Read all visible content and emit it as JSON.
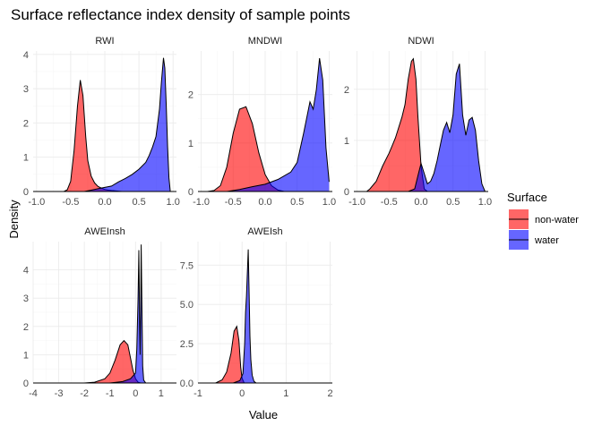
{
  "chart_data": {
    "type": "area",
    "title": "Surface reflectance index density of sample points",
    "xlabel": "Value",
    "ylabel": "Density",
    "legend": {
      "title": "Surface",
      "placement": "right",
      "entries": [
        {
          "name": "non-water",
          "color": "#ff0000"
        },
        {
          "name": "water",
          "color": "#0000ff"
        }
      ]
    },
    "fill_opacity": 0.6,
    "grid": true,
    "panels": [
      {
        "name": "RWI",
        "xlim": [
          -1.05,
          1.05
        ],
        "ylim": [
          0,
          4.1
        ],
        "xticks": [
          -1.0,
          -0.5,
          0.0,
          0.5,
          1.0
        ],
        "xtick_labels": [
          "-1.0",
          "-0.5",
          "0.0",
          "0.5",
          "1.0"
        ],
        "yticks": [
          0,
          1,
          2,
          3,
          4
        ],
        "ytick_labels": [
          "0",
          "1",
          "2",
          "3",
          "4"
        ],
        "series": [
          {
            "name": "non-water",
            "x": [
              -0.6,
              -0.55,
              -0.5,
              -0.45,
              -0.4,
              -0.36,
              -0.32,
              -0.28,
              -0.25,
              -0.2,
              -0.15,
              -0.1,
              -0.05,
              0.0,
              0.05,
              0.1,
              0.15,
              0.2,
              0.25,
              0.3
            ],
            "y": [
              0.0,
              0.05,
              0.3,
              1.2,
              2.5,
              3.25,
              2.8,
              1.6,
              0.9,
              0.45,
              0.25,
              0.15,
              0.1,
              0.06,
              0.04,
              0.03,
              0.02,
              0.01,
              0.0,
              0.0
            ]
          },
          {
            "name": "water",
            "x": [
              -0.3,
              -0.2,
              -0.1,
              0.0,
              0.1,
              0.2,
              0.3,
              0.4,
              0.5,
              0.6,
              0.65,
              0.7,
              0.75,
              0.8,
              0.83,
              0.86,
              0.88,
              0.9,
              0.92,
              0.94,
              0.96
            ],
            "y": [
              0.0,
              0.04,
              0.08,
              0.12,
              0.16,
              0.28,
              0.38,
              0.5,
              0.65,
              0.85,
              1.05,
              1.3,
              1.6,
              2.4,
              3.2,
              3.9,
              3.6,
              2.5,
              1.3,
              0.4,
              0.0
            ]
          }
        ]
      },
      {
        "name": "MNDWI",
        "xlim": [
          -1.05,
          1.05
        ],
        "ylim": [
          0,
          2.9
        ],
        "xticks": [
          -1.0,
          -0.5,
          0.0,
          0.5,
          1.0
        ],
        "xtick_labels": [
          "-1.0",
          "-0.5",
          "0.0",
          "0.5",
          "1.0"
        ],
        "yticks": [
          0,
          1,
          2
        ],
        "ytick_labels": [
          "0",
          "1",
          "2"
        ],
        "series": [
          {
            "name": "non-water",
            "x": [
              -0.9,
              -0.8,
              -0.7,
              -0.6,
              -0.5,
              -0.4,
              -0.3,
              -0.2,
              -0.1,
              0.0,
              0.1,
              0.2,
              0.3
            ],
            "y": [
              0.0,
              0.02,
              0.12,
              0.5,
              1.2,
              1.7,
              1.75,
              1.4,
              0.8,
              0.35,
              0.12,
              0.03,
              0.0
            ]
          },
          {
            "name": "water",
            "x": [
              -0.6,
              -0.4,
              -0.2,
              0.0,
              0.2,
              0.4,
              0.5,
              0.6,
              0.7,
              0.75,
              0.8,
              0.85,
              0.9,
              0.95,
              1.0
            ],
            "y": [
              0.0,
              0.04,
              0.1,
              0.15,
              0.25,
              0.4,
              0.6,
              1.2,
              1.85,
              1.7,
              2.1,
              2.75,
              2.3,
              0.9,
              0.2
            ]
          }
        ]
      },
      {
        "name": "NDWI",
        "xlim": [
          -1.05,
          1.05
        ],
        "ylim": [
          0,
          2.75
        ],
        "xticks": [
          -1.0,
          -0.5,
          0.0,
          0.5,
          1.0
        ],
        "xtick_labels": [
          "-1.0",
          "-0.5",
          "0.0",
          "0.5",
          "1.0"
        ],
        "yticks": [
          0,
          1,
          2
        ],
        "ytick_labels": [
          "0",
          "1",
          "2"
        ],
        "series": [
          {
            "name": "non-water",
            "x": [
              -0.85,
              -0.8,
              -0.7,
              -0.6,
              -0.5,
              -0.45,
              -0.4,
              -0.35,
              -0.3,
              -0.25,
              -0.2,
              -0.15,
              -0.12,
              -0.08,
              -0.05,
              0.0,
              0.05,
              0.1
            ],
            "y": [
              0.0,
              0.05,
              0.2,
              0.5,
              0.75,
              0.9,
              1.05,
              1.25,
              1.45,
              1.7,
              2.2,
              2.55,
              2.6,
              2.2,
              1.5,
              0.5,
              0.05,
              0.0
            ]
          },
          {
            "name": "water",
            "x": [
              -0.2,
              -0.1,
              -0.05,
              0.0,
              0.05,
              0.1,
              0.15,
              0.2,
              0.25,
              0.3,
              0.35,
              0.4,
              0.45,
              0.5,
              0.55,
              0.6,
              0.65,
              0.7,
              0.75,
              0.8,
              0.85,
              0.9,
              0.95,
              1.0
            ],
            "y": [
              0.0,
              0.05,
              0.3,
              0.55,
              0.35,
              0.15,
              0.2,
              0.35,
              0.6,
              0.9,
              1.2,
              1.35,
              1.15,
              1.5,
              2.3,
              2.5,
              1.5,
              1.1,
              1.4,
              1.45,
              1.2,
              0.6,
              0.15,
              0.0
            ]
          }
        ]
      },
      {
        "name": "AWEInsh",
        "xlim": [
          -4.0,
          1.6
        ],
        "ylim": [
          0,
          5.0
        ],
        "xticks": [
          -4,
          -3,
          -2,
          -1,
          0,
          1
        ],
        "xtick_labels": [
          "-4",
          "-3",
          "-2",
          "-1",
          "0",
          "1"
        ],
        "yticks": [
          0,
          1,
          2,
          3,
          4
        ],
        "ytick_labels": [
          "0",
          "1",
          "2",
          "3",
          "4"
        ],
        "series": [
          {
            "name": "non-water",
            "x": [
              -2.0,
              -1.6,
              -1.2,
              -1.0,
              -0.8,
              -0.6,
              -0.45,
              -0.3,
              -0.2,
              -0.1,
              0.0,
              0.1,
              0.2
            ],
            "y": [
              0.0,
              0.03,
              0.15,
              0.35,
              0.8,
              1.35,
              1.5,
              1.35,
              0.9,
              0.45,
              0.15,
              0.03,
              0.0
            ]
          },
          {
            "name": "water",
            "x": [
              -1.0,
              -0.5,
              -0.2,
              0.0,
              0.05,
              0.1,
              0.13,
              0.16,
              0.18,
              0.2,
              0.22,
              0.25,
              0.28,
              0.32,
              0.4
            ],
            "y": [
              0.0,
              0.05,
              0.15,
              0.35,
              1.2,
              3.0,
              4.7,
              2.0,
              1.0,
              2.6,
              4.9,
              2.8,
              0.6,
              0.1,
              0.0
            ]
          }
        ]
      },
      {
        "name": "AWEIsh",
        "xlim": [
          -1.0,
          2.05
        ],
        "ylim": [
          0,
          9.0
        ],
        "xticks": [
          -1,
          0,
          1,
          2
        ],
        "xtick_labels": [
          "-1",
          "0",
          "1",
          "2"
        ],
        "yticks": [
          0,
          2.5,
          5,
          7.5
        ],
        "ytick_labels": [
          "0.0",
          "2.5",
          "5.0",
          "7.5"
        ],
        "series": [
          {
            "name": "non-water",
            "x": [
              -0.6,
              -0.45,
              -0.35,
              -0.25,
              -0.18,
              -0.12,
              -0.07,
              -0.03,
              0.0,
              0.05
            ],
            "y": [
              0.0,
              0.2,
              0.7,
              1.9,
              3.3,
              3.6,
              2.7,
              1.0,
              0.3,
              0.0
            ]
          },
          {
            "name": "water",
            "x": [
              -0.2,
              -0.05,
              0.02,
              0.06,
              0.08,
              0.1,
              0.12,
              0.14,
              0.16,
              0.18,
              0.2,
              0.23,
              0.27,
              0.32
            ],
            "y": [
              0.0,
              0.15,
              0.6,
              2.5,
              4.5,
              5.5,
              7.0,
              8.5,
              6.0,
              3.0,
              1.5,
              0.5,
              0.1,
              0.0
            ]
          }
        ]
      }
    ]
  }
}
